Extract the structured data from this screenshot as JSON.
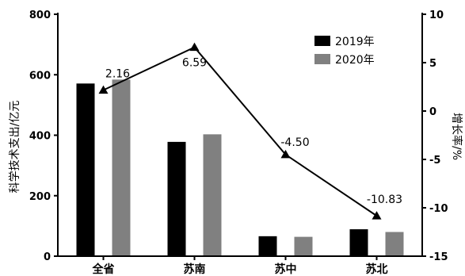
{
  "chart_data": {
    "type": "bar",
    "categories": [
      "全省",
      "苏南",
      "苏中",
      "苏北"
    ],
    "series": [
      {
        "name": "2019年",
        "values": [
          571,
          378,
          66,
          89
        ],
        "color": "#000000",
        "axis": "left"
      },
      {
        "name": "2020年",
        "values": [
          584,
          403,
          64,
          80
        ],
        "color": "#808080",
        "axis": "left"
      }
    ],
    "growth": {
      "type": "line",
      "axis": "right",
      "values": [
        2.16,
        6.59,
        -4.5,
        -10.83
      ],
      "labels": [
        "2.16",
        "6.59",
        "-4.50",
        "-10.83"
      ],
      "color": "#000000",
      "marker": "triangle"
    },
    "y_left": {
      "label": "科学技术支出/亿元",
      "ylim": [
        0,
        800
      ],
      "ticks": [
        "0",
        "200",
        "400",
        "600",
        "800"
      ]
    },
    "y_right": {
      "label": "增长率/%",
      "ylim": [
        -15,
        10
      ],
      "ticks": [
        "-15",
        "-10",
        "-5",
        "0",
        "5",
        "10"
      ]
    },
    "legend": {
      "position": "top-right"
    },
    "grid": false
  }
}
